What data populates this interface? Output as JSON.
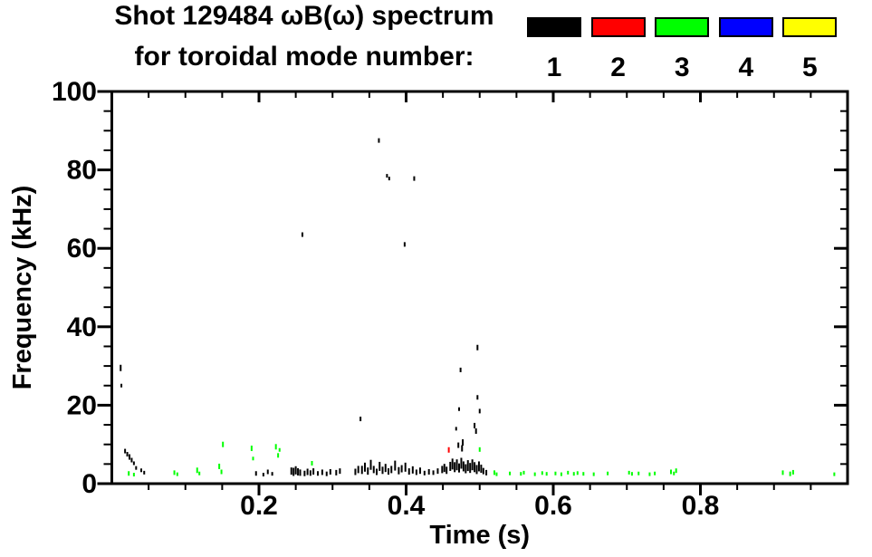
{
  "chart_data": {
    "type": "scatter",
    "title_line1": "Shot 129484 ωB(ω) spectrum",
    "title_line2": "for toroidal mode number:",
    "xlabel": "Time (s)",
    "ylabel": "Frequency (kHz)",
    "xlim": [
      0,
      1.0
    ],
    "ylim": [
      0,
      100
    ],
    "x_major_ticks": [
      0.2,
      0.4,
      0.6,
      0.8
    ],
    "x_tick_labels": [
      "0.2",
      "0.4",
      "0.6",
      "0.8"
    ],
    "x_minor_step": 0.05,
    "y_major_ticks": [
      0,
      20,
      40,
      60,
      80,
      100
    ],
    "y_tick_labels": [
      "0",
      "20",
      "40",
      "60",
      "80",
      "100"
    ],
    "y_minor_step": 5,
    "background_color": "#ffffff",
    "axis_color": "#000000",
    "grid": false,
    "legend_position": "top-right",
    "legend": [
      {
        "label": "1",
        "color": "#000000"
      },
      {
        "label": "2",
        "color": "#ff0000"
      },
      {
        "label": "3",
        "color": "#00ff00"
      },
      {
        "label": "4",
        "color": "#0000ff"
      },
      {
        "label": "5",
        "color": "#ffff00"
      }
    ],
    "series": [
      {
        "name": "mode 1",
        "color": "#000000",
        "points": [
          [
            0.012,
            29.5,
            7
          ],
          [
            0.013,
            25.0,
            4
          ],
          [
            0.018,
            8.3,
            5
          ],
          [
            0.021,
            7.5,
            5
          ],
          [
            0.024,
            6.8,
            6
          ],
          [
            0.027,
            6.0,
            5
          ],
          [
            0.03,
            5.2,
            4
          ],
          [
            0.033,
            4.0,
            4
          ],
          [
            0.04,
            3.4,
            4
          ],
          [
            0.044,
            2.8,
            4
          ],
          [
            0.196,
            2.6,
            5
          ],
          [
            0.206,
            2.3,
            4
          ],
          [
            0.212,
            3.0,
            5
          ],
          [
            0.218,
            2.5,
            4
          ],
          [
            0.244,
            3.2,
            8
          ],
          [
            0.247,
            3.0,
            9
          ],
          [
            0.25,
            3.4,
            9
          ],
          [
            0.253,
            3.0,
            8
          ],
          [
            0.256,
            2.8,
            7
          ],
          [
            0.262,
            2.6,
            6
          ],
          [
            0.266,
            3.0,
            7
          ],
          [
            0.27,
            2.7,
            6
          ],
          [
            0.274,
            3.1,
            7
          ],
          [
            0.28,
            2.6,
            5
          ],
          [
            0.286,
            2.9,
            6
          ],
          [
            0.292,
            2.5,
            5
          ],
          [
            0.297,
            3.0,
            6
          ],
          [
            0.305,
            2.8,
            6
          ],
          [
            0.31,
            3.2,
            6
          ],
          [
            0.331,
            3.0,
            7
          ],
          [
            0.335,
            3.6,
            8
          ],
          [
            0.34,
            3.5,
            9
          ],
          [
            0.344,
            4.2,
            10
          ],
          [
            0.348,
            3.2,
            8
          ],
          [
            0.352,
            4.8,
            11
          ],
          [
            0.356,
            3.6,
            8
          ],
          [
            0.36,
            3.0,
            7
          ],
          [
            0.364,
            4.4,
            10
          ],
          [
            0.368,
            3.4,
            8
          ],
          [
            0.372,
            4.0,
            9
          ],
          [
            0.376,
            3.1,
            7
          ],
          [
            0.38,
            3.6,
            8
          ],
          [
            0.385,
            4.6,
            11
          ],
          [
            0.39,
            3.3,
            8
          ],
          [
            0.394,
            3.8,
            8
          ],
          [
            0.399,
            4.2,
            10
          ],
          [
            0.404,
            3.1,
            7
          ],
          [
            0.409,
            3.5,
            8
          ],
          [
            0.414,
            2.9,
            6
          ],
          [
            0.419,
            3.3,
            7
          ],
          [
            0.425,
            2.7,
            5
          ],
          [
            0.431,
            3.0,
            6
          ],
          [
            0.437,
            2.8,
            5
          ],
          [
            0.443,
            3.2,
            6
          ],
          [
            0.449,
            3.6,
            8
          ],
          [
            0.452,
            4.0,
            9
          ],
          [
            0.455,
            3.4,
            8
          ],
          [
            0.46,
            4.4,
            10
          ],
          [
            0.463,
            5.0,
            12
          ],
          [
            0.466,
            4.2,
            11
          ],
          [
            0.469,
            4.8,
            12
          ],
          [
            0.472,
            4.0,
            10
          ],
          [
            0.475,
            5.2,
            12
          ],
          [
            0.478,
            4.4,
            11
          ],
          [
            0.481,
            3.8,
            10
          ],
          [
            0.484,
            4.6,
            12
          ],
          [
            0.487,
            4.0,
            11
          ],
          [
            0.49,
            4.8,
            12
          ],
          [
            0.493,
            4.2,
            11
          ],
          [
            0.496,
            3.6,
            10
          ],
          [
            0.499,
            4.4,
            11
          ],
          [
            0.502,
            3.8,
            9
          ],
          [
            0.505,
            3.2,
            7
          ],
          [
            0.509,
            2.8,
            6
          ],
          [
            0.259,
            63.5,
            5
          ],
          [
            0.338,
            16.5,
            5
          ],
          [
            0.363,
            87.5,
            5
          ],
          [
            0.374,
            78.5,
            4
          ],
          [
            0.377,
            77.8,
            4
          ],
          [
            0.398,
            61.0,
            5
          ],
          [
            0.411,
            77.8,
            5
          ],
          [
            0.468,
            14.0,
            4
          ],
          [
            0.471,
            9.8,
            6
          ],
          [
            0.472,
            19.0,
            4
          ],
          [
            0.474,
            29.0,
            5
          ],
          [
            0.476,
            9.0,
            7
          ],
          [
            0.477,
            10.5,
            7
          ],
          [
            0.493,
            14.8,
            6
          ],
          [
            0.495,
            13.4,
            6
          ],
          [
            0.497,
            34.7,
            6
          ],
          [
            0.497,
            22.0,
            5
          ],
          [
            0.5,
            18.5,
            5
          ]
        ]
      },
      {
        "name": "mode 2",
        "color": "#ff0000",
        "points": [
          [
            0.458,
            8.6,
            6
          ]
        ]
      },
      {
        "name": "mode 3",
        "color": "#00ff00",
        "points": [
          [
            0.023,
            2.6,
            5
          ],
          [
            0.03,
            2.3,
            4
          ],
          [
            0.085,
            2.8,
            5
          ],
          [
            0.089,
            2.4,
            4
          ],
          [
            0.116,
            3.4,
            6
          ],
          [
            0.119,
            2.6,
            4
          ],
          [
            0.146,
            4.4,
            6
          ],
          [
            0.149,
            3.0,
            5
          ],
          [
            0.151,
            10.0,
            6
          ],
          [
            0.19,
            9.0,
            6
          ],
          [
            0.192,
            6.4,
            4
          ],
          [
            0.223,
            9.4,
            6
          ],
          [
            0.226,
            7.2,
            5
          ],
          [
            0.228,
            8.6,
            4
          ],
          [
            0.272,
            5.2,
            5
          ],
          [
            0.5,
            8.7,
            5
          ],
          [
            0.52,
            2.8,
            5
          ],
          [
            0.523,
            2.4,
            4
          ],
          [
            0.541,
            2.6,
            4
          ],
          [
            0.556,
            2.5,
            4
          ],
          [
            0.56,
            2.8,
            4
          ],
          [
            0.575,
            2.4,
            4
          ],
          [
            0.585,
            2.7,
            4
          ],
          [
            0.591,
            2.5,
            4
          ],
          [
            0.603,
            2.6,
            4
          ],
          [
            0.611,
            2.4,
            4
          ],
          [
            0.62,
            2.8,
            4
          ],
          [
            0.628,
            2.5,
            4
          ],
          [
            0.633,
            2.7,
            4
          ],
          [
            0.641,
            2.5,
            4
          ],
          [
            0.655,
            2.4,
            4
          ],
          [
            0.674,
            2.6,
            4
          ],
          [
            0.703,
            2.8,
            4
          ],
          [
            0.707,
            2.5,
            4
          ],
          [
            0.716,
            2.6,
            4
          ],
          [
            0.731,
            2.4,
            4
          ],
          [
            0.738,
            2.6,
            4
          ],
          [
            0.76,
            3.0,
            5
          ],
          [
            0.764,
            2.6,
            4
          ],
          [
            0.767,
            3.3,
            5
          ],
          [
            0.912,
            2.8,
            5
          ],
          [
            0.922,
            2.5,
            5
          ],
          [
            0.926,
            2.9,
            5
          ],
          [
            0.982,
            2.4,
            4
          ]
        ]
      },
      {
        "name": "mode 4",
        "color": "#0000ff",
        "points": []
      },
      {
        "name": "mode 5",
        "color": "#ffff00",
        "points": []
      }
    ]
  }
}
